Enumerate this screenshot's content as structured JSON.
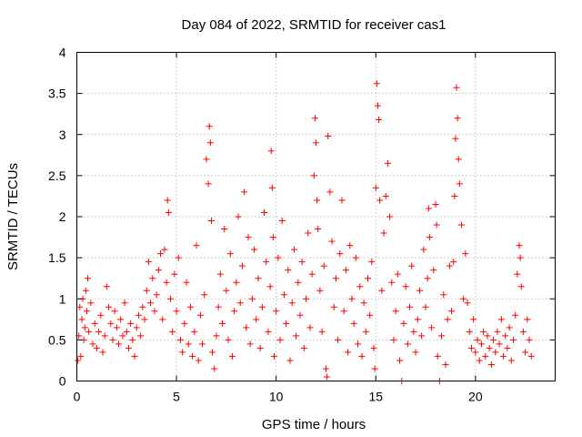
{
  "chart_data": {
    "type": "scatter",
    "title": "Day 084 of 2022, SRMTID for receiver cas1",
    "xlabel": "GPS time / hours",
    "ylabel": "SRMTID / TECUs",
    "xlim": [
      0,
      24
    ],
    "ylim": [
      0,
      4
    ],
    "x_ticks": [
      "0",
      "5",
      "10",
      "15",
      "20"
    ],
    "y_ticks": [
      "0",
      "0.5",
      "1",
      "1.5",
      "2",
      "2.5",
      "3",
      "3.5",
      "4"
    ],
    "grid": true,
    "legend": "none",
    "marker": "+",
    "color": "#ff0000",
    "series": [
      {
        "name": "cas1",
        "points": [
          [
            0.05,
            0.25
          ],
          [
            0.1,
            0.55
          ],
          [
            0.15,
            0.9
          ],
          [
            0.2,
            0.3
          ],
          [
            0.25,
            0.75
          ],
          [
            0.3,
            1.0
          ],
          [
            0.35,
            0.5
          ],
          [
            0.4,
            0.65
          ],
          [
            0.45,
            1.1
          ],
          [
            0.5,
            0.85
          ],
          [
            0.55,
            1.25
          ],
          [
            0.6,
            0.6
          ],
          [
            0.7,
            0.95
          ],
          [
            0.8,
            0.45
          ],
          [
            0.9,
            0.7
          ],
          [
            1.0,
            0.4
          ],
          [
            1.1,
            0.6
          ],
          [
            1.2,
            0.8
          ],
          [
            1.3,
            0.35
          ],
          [
            1.4,
            0.55
          ],
          [
            1.5,
            1.15
          ],
          [
            1.6,
            0.9
          ],
          [
            1.7,
            0.7
          ],
          [
            1.8,
            0.5
          ],
          [
            1.9,
            0.85
          ],
          [
            2.0,
            0.65
          ],
          [
            2.1,
            0.45
          ],
          [
            2.2,
            0.75
          ],
          [
            2.3,
            0.55
          ],
          [
            2.4,
            0.95
          ],
          [
            2.5,
            0.6
          ],
          [
            2.6,
            0.4
          ],
          [
            2.7,
            0.7
          ],
          [
            2.8,
            0.5
          ],
          [
            2.9,
            0.3
          ],
          [
            3.0,
            0.65
          ],
          [
            3.1,
            0.8
          ],
          [
            3.2,
            0.55
          ],
          [
            3.3,
            0.9
          ],
          [
            3.4,
            0.75
          ],
          [
            3.5,
            1.1
          ],
          [
            3.6,
            1.45
          ],
          [
            3.7,
            0.95
          ],
          [
            3.8,
            1.25
          ],
          [
            3.9,
            0.85
          ],
          [
            4.0,
            1.05
          ],
          [
            4.1,
            1.35
          ],
          [
            4.2,
            1.55
          ],
          [
            4.3,
            0.75
          ],
          [
            4.4,
            1.6
          ],
          [
            4.5,
            1.2
          ],
          [
            4.55,
            2.2
          ],
          [
            4.6,
            2.05
          ],
          [
            4.7,
            1.0
          ],
          [
            4.8,
            0.6
          ],
          [
            4.9,
            1.3
          ],
          [
            5.0,
            0.85
          ],
          [
            5.1,
            1.5
          ],
          [
            5.2,
            0.5
          ],
          [
            5.3,
            0.35
          ],
          [
            5.4,
            0.7
          ],
          [
            5.5,
            1.2
          ],
          [
            5.6,
            0.45
          ],
          [
            5.7,
            0.9
          ],
          [
            5.8,
            0.3
          ],
          [
            5.9,
            0.6
          ],
          [
            6.0,
            1.65
          ],
          [
            6.1,
            0.25
          ],
          [
            6.2,
            0.8
          ],
          [
            6.3,
            0.45
          ],
          [
            6.4,
            1.05
          ],
          [
            6.5,
            2.7
          ],
          [
            6.6,
            2.4
          ],
          [
            6.65,
            3.1
          ],
          [
            6.7,
            2.9
          ],
          [
            6.75,
            1.95
          ],
          [
            6.8,
            0.35
          ],
          [
            6.9,
            0.15
          ],
          [
            7.0,
            0.55
          ],
          [
            7.1,
            0.9
          ],
          [
            7.2,
            1.3
          ],
          [
            7.3,
            0.7
          ],
          [
            7.4,
            1.85
          ],
          [
            7.5,
            1.1
          ],
          [
            7.6,
            0.5
          ],
          [
            7.7,
            1.55
          ],
          [
            7.8,
            0.3
          ],
          [
            7.9,
            0.85
          ],
          [
            8.0,
            1.2
          ],
          [
            8.1,
            2.0
          ],
          [
            8.2,
            0.95
          ],
          [
            8.3,
            1.4
          ],
          [
            8.4,
            2.3
          ],
          [
            8.5,
            0.65
          ],
          [
            8.6,
            1.75
          ],
          [
            8.7,
            0.45
          ],
          [
            8.8,
            1.0
          ],
          [
            8.9,
            1.6
          ],
          [
            9.0,
            0.75
          ],
          [
            9.1,
            1.25
          ],
          [
            9.2,
            0.4
          ],
          [
            9.3,
            0.9
          ],
          [
            9.4,
            2.05
          ],
          [
            9.5,
            1.45
          ],
          [
            9.6,
            0.6
          ],
          [
            9.7,
            1.15
          ],
          [
            9.75,
            2.8
          ],
          [
            9.8,
            2.35
          ],
          [
            9.85,
            1.75
          ],
          [
            9.9,
            0.3
          ],
          [
            10.0,
            0.85
          ],
          [
            10.1,
            1.5
          ],
          [
            10.2,
            0.5
          ],
          [
            10.3,
            1.95
          ],
          [
            10.4,
            1.05
          ],
          [
            10.5,
            0.7
          ],
          [
            10.6,
            1.35
          ],
          [
            10.7,
            0.25
          ],
          [
            10.8,
            0.95
          ],
          [
            10.9,
            1.6
          ],
          [
            11.0,
            0.55
          ],
          [
            11.1,
            1.2
          ],
          [
            11.2,
            0.8
          ],
          [
            11.3,
            1.45
          ],
          [
            11.4,
            0.4
          ],
          [
            11.5,
            1.0
          ],
          [
            11.6,
            1.8
          ],
          [
            11.7,
            0.65
          ],
          [
            11.8,
            1.3
          ],
          [
            11.9,
            2.5
          ],
          [
            11.95,
            3.2
          ],
          [
            12.0,
            2.9
          ],
          [
            12.05,
            2.2
          ],
          [
            12.1,
            1.85
          ],
          [
            12.2,
            1.1
          ],
          [
            12.3,
            0.6
          ],
          [
            12.4,
            1.4
          ],
          [
            12.5,
            0.15
          ],
          [
            12.55,
            0.05
          ],
          [
            12.6,
            2.98
          ],
          [
            12.7,
            2.3
          ],
          [
            12.8,
            1.7
          ],
          [
            12.9,
            0.9
          ],
          [
            13.0,
            1.25
          ],
          [
            13.1,
            0.5
          ],
          [
            13.2,
            1.55
          ],
          [
            13.3,
            2.2
          ],
          [
            13.4,
            0.85
          ],
          [
            13.5,
            1.35
          ],
          [
            13.6,
            0.35
          ],
          [
            13.7,
            1.65
          ],
          [
            13.8,
            1.0
          ],
          [
            13.9,
            0.7
          ],
          [
            14.0,
            1.5
          ],
          [
            14.1,
            0.45
          ],
          [
            14.2,
            1.15
          ],
          [
            14.3,
            0.3
          ],
          [
            14.4,
            0.95
          ],
          [
            14.5,
            0.6
          ],
          [
            14.6,
            1.25
          ],
          [
            14.7,
            0.8
          ],
          [
            14.8,
            1.45
          ],
          [
            14.9,
            0.4
          ],
          [
            14.95,
            0.15
          ],
          [
            15.0,
            2.35
          ],
          [
            15.05,
            3.62
          ],
          [
            15.1,
            3.35
          ],
          [
            15.15,
            3.18
          ],
          [
            15.2,
            2.2
          ],
          [
            15.3,
            1.1
          ],
          [
            15.4,
            1.8
          ],
          [
            15.5,
            2.25
          ],
          [
            15.6,
            2.65
          ],
          [
            15.7,
            2.0
          ],
          [
            15.8,
            1.2
          ],
          [
            15.9,
            0.5
          ],
          [
            16.0,
            0.85
          ],
          [
            16.1,
            1.3
          ],
          [
            16.2,
            0.25
          ],
          [
            16.3,
            0.0
          ],
          [
            16.4,
            0.7
          ],
          [
            16.5,
            1.15
          ],
          [
            16.6,
            0.45
          ],
          [
            16.7,
            0.9
          ],
          [
            16.8,
            1.4
          ],
          [
            16.9,
            0.6
          ],
          [
            17.0,
            0.35
          ],
          [
            17.1,
            0.75
          ],
          [
            17.2,
            1.1
          ],
          [
            17.3,
            0.55
          ],
          [
            17.4,
            1.6
          ],
          [
            17.5,
            0.9
          ],
          [
            17.6,
            1.25
          ],
          [
            17.65,
            2.1
          ],
          [
            17.7,
            1.75
          ],
          [
            17.8,
            0.65
          ],
          [
            17.9,
            1.35
          ],
          [
            18.0,
            2.15
          ],
          [
            18.05,
            1.9
          ],
          [
            18.1,
            0.3
          ],
          [
            18.2,
            0.0
          ],
          [
            18.3,
            0.55
          ],
          [
            18.4,
            1.05
          ],
          [
            18.5,
            0.2
          ],
          [
            18.6,
            0.75
          ],
          [
            18.7,
            1.4
          ],
          [
            18.8,
            0.85
          ],
          [
            18.9,
            1.45
          ],
          [
            18.95,
            2.25
          ],
          [
            19.0,
            2.95
          ],
          [
            19.05,
            3.57
          ],
          [
            19.1,
            3.2
          ],
          [
            19.15,
            2.7
          ],
          [
            19.2,
            2.4
          ],
          [
            19.3,
            1.9
          ],
          [
            19.4,
            1.0
          ],
          [
            19.5,
            1.55
          ],
          [
            19.6,
            0.95
          ],
          [
            19.7,
            0.6
          ],
          [
            19.8,
            0.4
          ],
          [
            19.9,
            0.75
          ],
          [
            20.0,
            0.35
          ],
          [
            20.1,
            0.5
          ],
          [
            20.2,
            0.25
          ],
          [
            20.3,
            0.45
          ],
          [
            20.4,
            0.6
          ],
          [
            20.5,
            0.3
          ],
          [
            20.6,
            0.55
          ],
          [
            20.7,
            0.4
          ],
          [
            20.8,
            0.2
          ],
          [
            20.9,
            0.5
          ],
          [
            21.0,
            0.35
          ],
          [
            21.1,
            0.6
          ],
          [
            21.2,
            0.45
          ],
          [
            21.3,
            0.75
          ],
          [
            21.4,
            0.3
          ],
          [
            21.5,
            0.55
          ],
          [
            21.6,
            0.4
          ],
          [
            21.7,
            0.65
          ],
          [
            21.8,
            0.25
          ],
          [
            21.9,
            0.5
          ],
          [
            22.0,
            0.8
          ],
          [
            22.1,
            1.3
          ],
          [
            22.2,
            1.65
          ],
          [
            22.25,
            1.5
          ],
          [
            22.3,
            1.15
          ],
          [
            22.4,
            0.6
          ],
          [
            22.5,
            0.35
          ],
          [
            22.6,
            0.75
          ],
          [
            22.7,
            0.5
          ],
          [
            22.8,
            0.3
          ]
        ]
      }
    ]
  }
}
